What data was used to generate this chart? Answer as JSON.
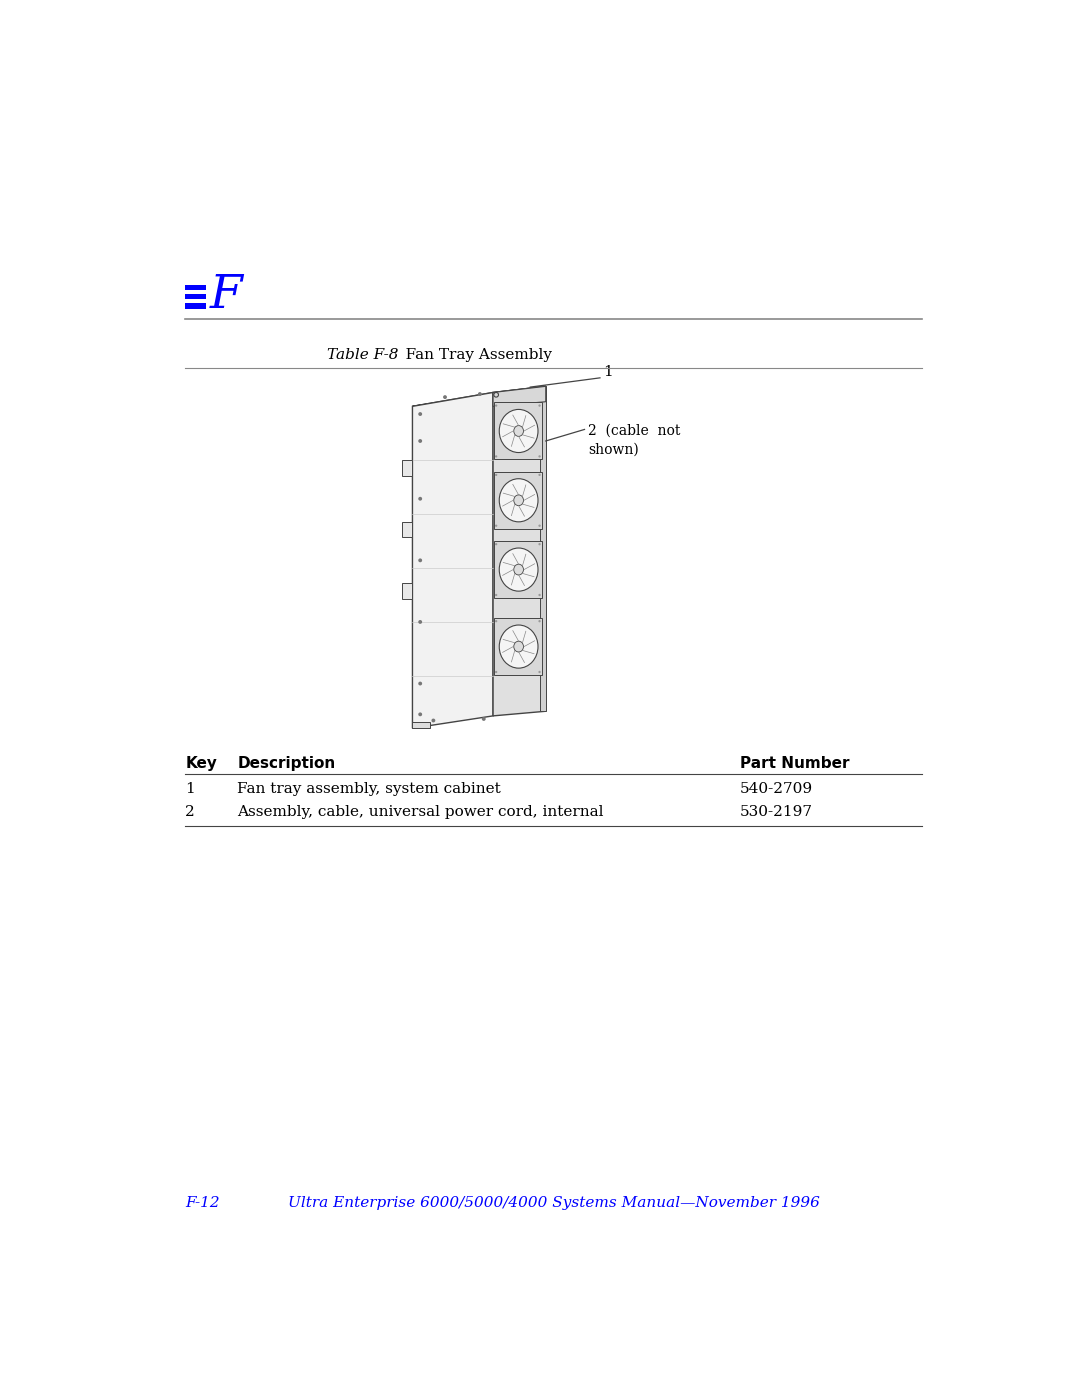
{
  "page_bg": "#ffffff",
  "blue_color": "#0000ff",
  "black_color": "#000000",
  "line_color": "#444444",
  "header_letter": "F",
  "table_title_italic": "Table F-8",
  "table_title_normal": "   Fan Tray Assembly",
  "table_headers": [
    "Key",
    "Description",
    "Part Number"
  ],
  "table_rows": [
    [
      "1",
      "Fan tray assembly, system cabinet",
      "540-2709"
    ],
    [
      "2",
      "Assembly, cable, universal power cord, internal",
      "530-2197"
    ]
  ],
  "footer_page": "F-12",
  "footer_text": "Ultra Enterprise 6000/5000/4000 Systems Manual—November 1996",
  "footer_color": "#0000ff",
  "annotation_1": "1",
  "annotation_2": "2  (cable  not\nshown)"
}
